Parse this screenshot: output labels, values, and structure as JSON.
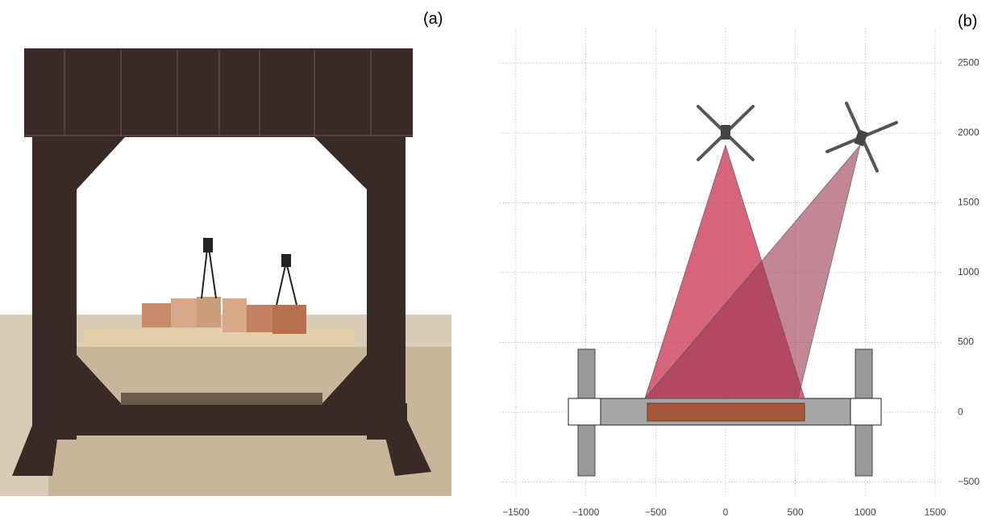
{
  "panels": {
    "a": {
      "label": "(a)"
    },
    "b": {
      "label": "(b)",
      "xlim": [
        -1615,
        1558
      ],
      "ylim": [
        -600,
        2750
      ],
      "xticks": [
        {
          "value": -1500,
          "label": "−1500"
        },
        {
          "value": -1000,
          "label": "−1000"
        },
        {
          "value": -500,
          "label": "−500"
        },
        0,
        500,
        1000,
        1500
      ],
      "yticks": [
        {
          "value": -500,
          "label": "−500"
        },
        0,
        500,
        1000,
        1500,
        2000,
        2500
      ]
    }
  }
}
